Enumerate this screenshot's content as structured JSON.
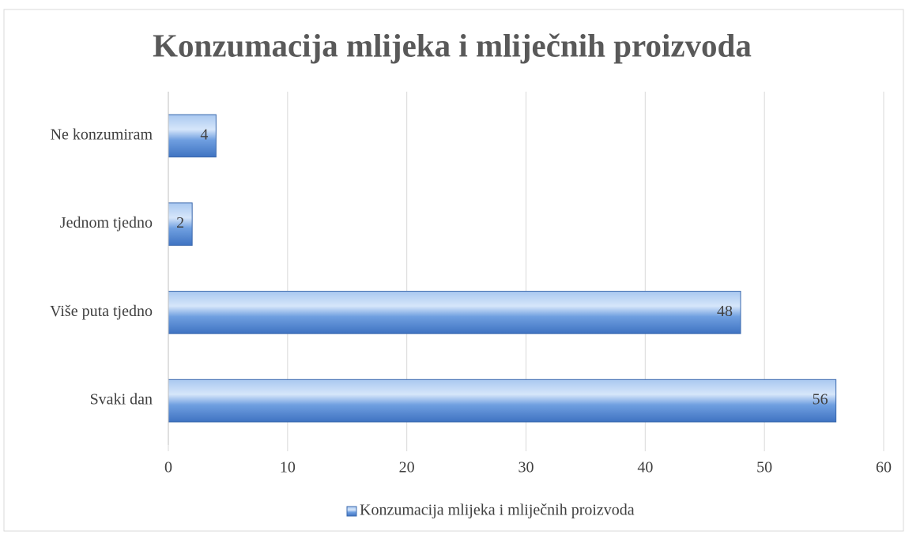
{
  "chart_data": {
    "type": "bar",
    "orientation": "horizontal",
    "title": "Konzumacija mlijeka i mliječnih proizvoda",
    "categories": [
      "Svaki dan",
      "Više puta tjedno",
      "Jednom tjedno",
      "Ne konzumiram"
    ],
    "series": [
      {
        "name": "Konzumacija mlijeka i mliječnih proizvoda",
        "color": "#4f86d0",
        "values": [
          56,
          48,
          2,
          4
        ]
      }
    ],
    "xlim": [
      0,
      60
    ],
    "xticks": [
      0,
      10,
      20,
      30,
      40,
      50,
      60
    ],
    "grid": true,
    "legend": "bottom"
  }
}
